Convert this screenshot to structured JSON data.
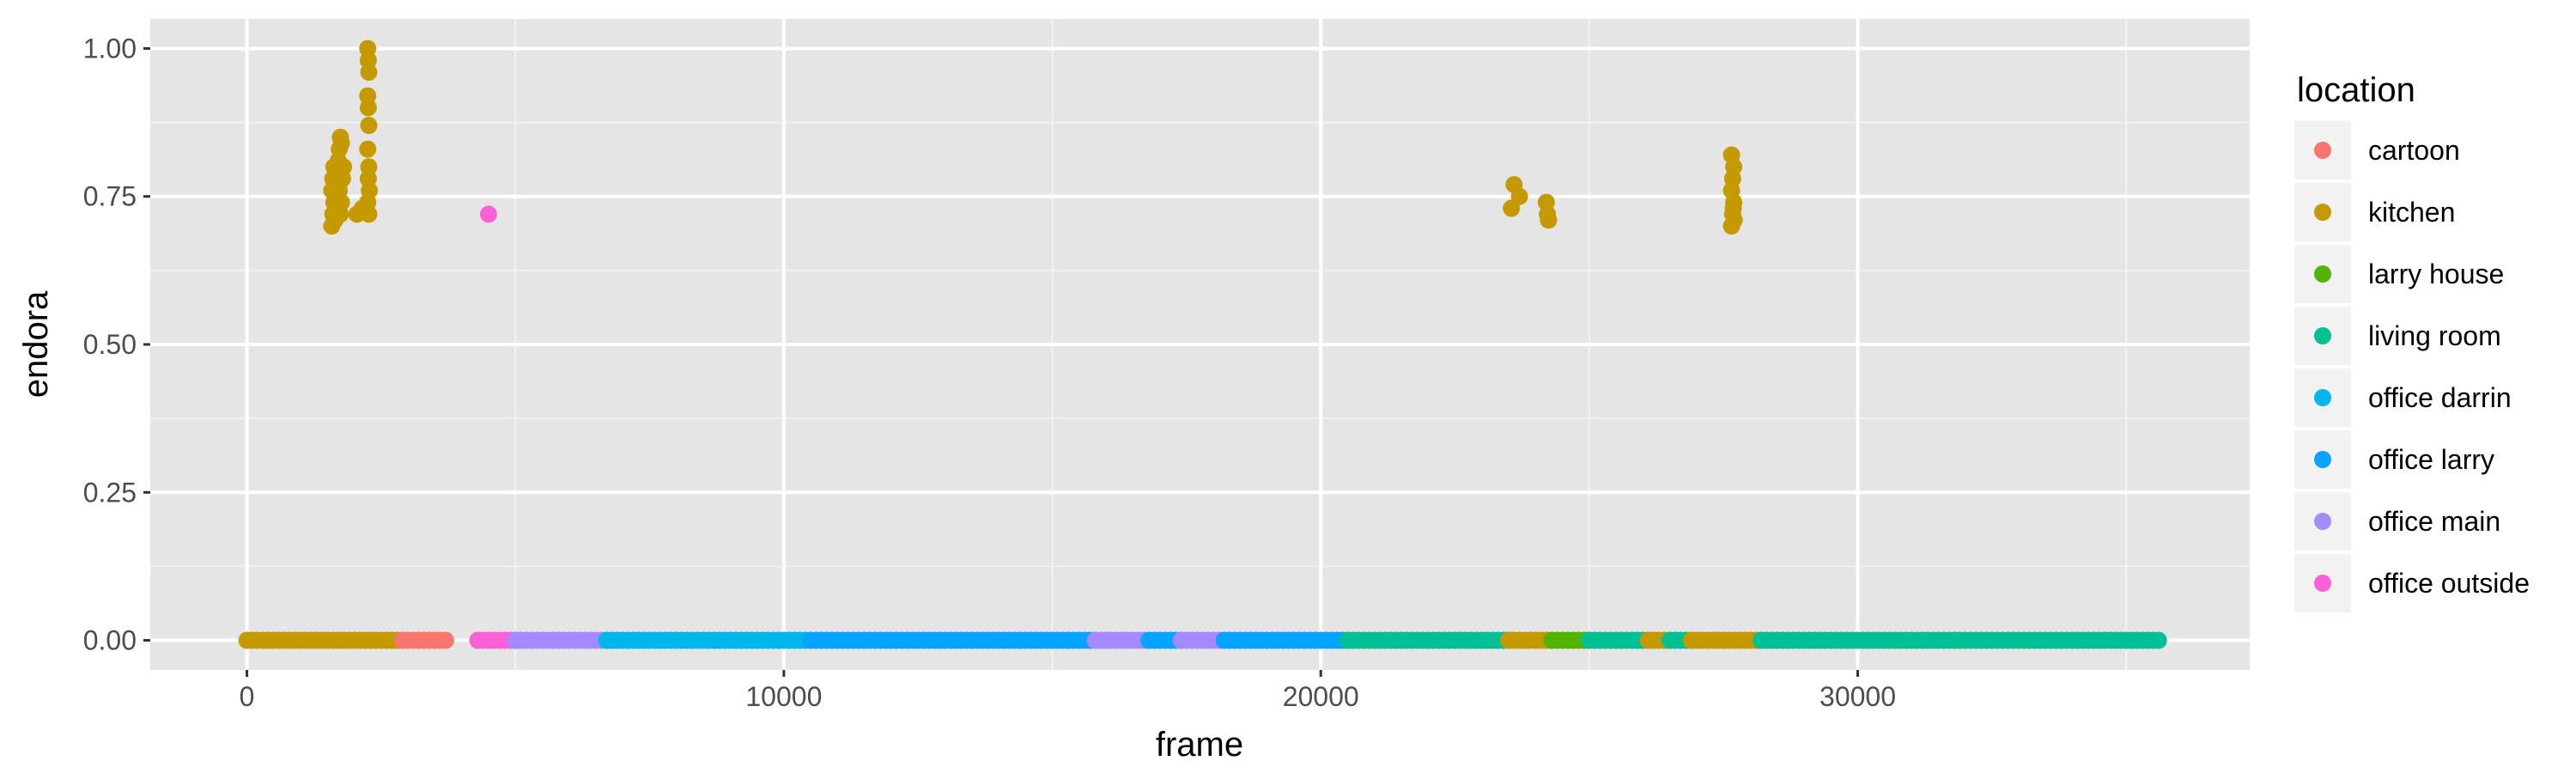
{
  "chart_data": {
    "type": "scatter",
    "title": "",
    "xlabel": "frame",
    "ylabel": "endora",
    "xlim": [
      -1800,
      37300
    ],
    "ylim": [
      -0.05,
      1.05
    ],
    "x_ticks": [
      0,
      10000,
      20000,
      30000
    ],
    "x_tick_labels": [
      "0",
      "10000",
      "20000",
      "30000"
    ],
    "y_ticks": [
      0,
      0.25,
      0.5,
      0.75,
      1.0
    ],
    "y_tick_labels": [
      "0.00",
      "0.25",
      "0.50",
      "0.75",
      "1.00"
    ],
    "grid": true,
    "panel_background": "#e5e5e5",
    "legend": {
      "title": "location",
      "placement": "right",
      "entries": [
        "cartoon",
        "kitchen",
        "larry house",
        "living room",
        "office darrin",
        "office larry",
        "office main",
        "office outside"
      ]
    },
    "colors": {
      "cartoon": "#F8766D",
      "kitchen": "#C49A00",
      "larry house": "#53B400",
      "living room": "#00C094",
      "office darrin": "#00B6EB",
      "office larry": "#06A4FF",
      "office main": "#A58AFF",
      "office outside": "#FB61D7"
    },
    "baseline_segments": [
      {
        "location": "kitchen",
        "start": 0,
        "end": 2900
      },
      {
        "location": "cartoon",
        "start": 2900,
        "end": 3700
      },
      {
        "location": "office outside",
        "start": 4300,
        "end": 5000
      },
      {
        "location": "office main",
        "start": 5000,
        "end": 6700
      },
      {
        "location": "office darrin",
        "start": 6700,
        "end": 10500
      },
      {
        "location": "office larry",
        "start": 10500,
        "end": 15800
      },
      {
        "location": "office main",
        "start": 15800,
        "end": 16800
      },
      {
        "location": "office larry",
        "start": 16800,
        "end": 17400
      },
      {
        "location": "office main",
        "start": 17400,
        "end": 18200
      },
      {
        "location": "office larry",
        "start": 18200,
        "end": 20500
      },
      {
        "location": "living room",
        "start": 20500,
        "end": 23500
      },
      {
        "location": "kitchen",
        "start": 23500,
        "end": 24300
      },
      {
        "location": "larry house",
        "start": 24300,
        "end": 25000
      },
      {
        "location": "living room",
        "start": 25000,
        "end": 26100
      },
      {
        "location": "kitchen",
        "start": 26100,
        "end": 26500
      },
      {
        "location": "living room",
        "start": 26500,
        "end": 26900
      },
      {
        "location": "kitchen",
        "start": 26900,
        "end": 28200
      },
      {
        "location": "living room",
        "start": 28200,
        "end": 35600
      }
    ],
    "points": [
      {
        "location": "kitchen",
        "x": 1580,
        "y": 0.7
      },
      {
        "location": "kitchen",
        "x": 1600,
        "y": 0.72
      },
      {
        "location": "kitchen",
        "x": 1620,
        "y": 0.74
      },
      {
        "location": "kitchen",
        "x": 1580,
        "y": 0.76
      },
      {
        "location": "kitchen",
        "x": 1600,
        "y": 0.78
      },
      {
        "location": "kitchen",
        "x": 1620,
        "y": 0.8
      },
      {
        "location": "kitchen",
        "x": 1640,
        "y": 0.71
      },
      {
        "location": "kitchen",
        "x": 1660,
        "y": 0.73
      },
      {
        "location": "kitchen",
        "x": 1680,
        "y": 0.75
      },
      {
        "location": "kitchen",
        "x": 1700,
        "y": 0.77
      },
      {
        "location": "kitchen",
        "x": 1660,
        "y": 0.79
      },
      {
        "location": "kitchen",
        "x": 1700,
        "y": 0.81
      },
      {
        "location": "kitchen",
        "x": 1720,
        "y": 0.83
      },
      {
        "location": "kitchen",
        "x": 1740,
        "y": 0.85
      },
      {
        "location": "kitchen",
        "x": 1760,
        "y": 0.84
      },
      {
        "location": "kitchen",
        "x": 1740,
        "y": 0.72
      },
      {
        "location": "kitchen",
        "x": 1760,
        "y": 0.74
      },
      {
        "location": "kitchen",
        "x": 1720,
        "y": 0.76
      },
      {
        "location": "kitchen",
        "x": 1780,
        "y": 0.78
      },
      {
        "location": "kitchen",
        "x": 1800,
        "y": 0.8
      },
      {
        "location": "kitchen",
        "x": 2050,
        "y": 0.72
      },
      {
        "location": "kitchen",
        "x": 2150,
        "y": 0.73
      },
      {
        "location": "kitchen",
        "x": 2250,
        "y": 1.0
      },
      {
        "location": "kitchen",
        "x": 2260,
        "y": 0.98
      },
      {
        "location": "kitchen",
        "x": 2270,
        "y": 0.96
      },
      {
        "location": "kitchen",
        "x": 2250,
        "y": 0.92
      },
      {
        "location": "kitchen",
        "x": 2260,
        "y": 0.9
      },
      {
        "location": "kitchen",
        "x": 2270,
        "y": 0.87
      },
      {
        "location": "kitchen",
        "x": 2250,
        "y": 0.83
      },
      {
        "location": "kitchen",
        "x": 2270,
        "y": 0.8
      },
      {
        "location": "kitchen",
        "x": 2260,
        "y": 0.78
      },
      {
        "location": "kitchen",
        "x": 2280,
        "y": 0.76
      },
      {
        "location": "kitchen",
        "x": 2250,
        "y": 0.74
      },
      {
        "location": "kitchen",
        "x": 2270,
        "y": 0.72
      },
      {
        "location": "office outside",
        "x": 4500,
        "y": 0.72
      },
      {
        "location": "kitchen",
        "x": 23550,
        "y": 0.73
      },
      {
        "location": "kitchen",
        "x": 23600,
        "y": 0.77
      },
      {
        "location": "kitchen",
        "x": 23700,
        "y": 0.75
      },
      {
        "location": "kitchen",
        "x": 24200,
        "y": 0.74
      },
      {
        "location": "kitchen",
        "x": 24220,
        "y": 0.72
      },
      {
        "location": "kitchen",
        "x": 24240,
        "y": 0.71
      },
      {
        "location": "kitchen",
        "x": 27650,
        "y": 0.7
      },
      {
        "location": "kitchen",
        "x": 27670,
        "y": 0.72
      },
      {
        "location": "kitchen",
        "x": 27690,
        "y": 0.74
      },
      {
        "location": "kitchen",
        "x": 27650,
        "y": 0.76
      },
      {
        "location": "kitchen",
        "x": 27670,
        "y": 0.78
      },
      {
        "location": "kitchen",
        "x": 27690,
        "y": 0.8
      },
      {
        "location": "kitchen",
        "x": 27650,
        "y": 0.82
      },
      {
        "location": "kitchen",
        "x": 27680,
        "y": 0.73
      },
      {
        "location": "kitchen",
        "x": 27700,
        "y": 0.71
      }
    ]
  }
}
